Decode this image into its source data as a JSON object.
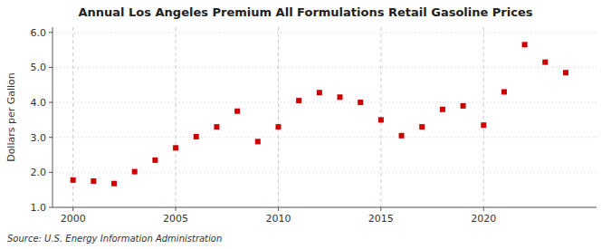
{
  "chart_data": {
    "type": "scatter",
    "title": "Annual Los Angeles Premium All Formulations Retail Gasoline Prices",
    "ylabel": "Dollars per Gallon",
    "annotations": [
      "Source: U.S. Energy Information Administration"
    ],
    "x": [
      2000,
      2001,
      2002,
      2003,
      2004,
      2005,
      2006,
      2007,
      2008,
      2009,
      2010,
      2011,
      2012,
      2013,
      2014,
      2015,
      2016,
      2017,
      2018,
      2019,
      2020,
      2021,
      2022,
      2023,
      2024
    ],
    "values": [
      1.78,
      1.75,
      1.68,
      2.02,
      2.35,
      2.7,
      3.02,
      3.3,
      3.75,
      2.88,
      3.3,
      4.05,
      4.28,
      4.15,
      4.0,
      3.5,
      3.05,
      3.3,
      3.8,
      3.9,
      3.35,
      4.3,
      5.65,
      5.15,
      4.85
    ],
    "color": "#cc0000",
    "marker": "square",
    "xlim": [
      1999.0,
      2025.5
    ],
    "xticks": [
      2000,
      2005,
      2010,
      2015,
      2020
    ],
    "ylim": [
      1.0,
      6.15
    ],
    "yticks": [
      {
        "value": 1.0,
        "label": "1.0"
      },
      {
        "value": 2.0,
        "label": "2.0"
      },
      {
        "value": 3.0,
        "label": "3.0"
      },
      {
        "value": 4.0,
        "label": "4.0"
      },
      {
        "value": 5.0,
        "label": "5.0"
      },
      {
        "value": 6.0,
        "label": "6.0"
      }
    ],
    "grid": true
  }
}
